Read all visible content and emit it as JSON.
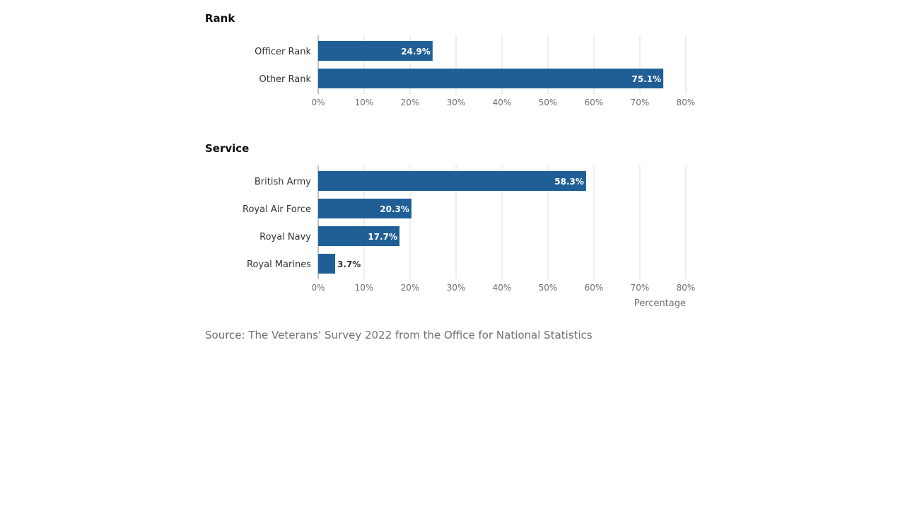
{
  "chart_data": [
    {
      "type": "bar",
      "orientation": "horizontal",
      "title": "Rank",
      "categories": [
        "Officer Rank",
        "Other Rank"
      ],
      "values": [
        24.9,
        75.1
      ],
      "value_labels": [
        "24.9%",
        "75.1%"
      ],
      "xlim": [
        0,
        80
      ],
      "xticks": [
        "0%",
        "10%",
        "20%",
        "30%",
        "40%",
        "50%",
        "60%",
        "70%",
        "80%"
      ],
      "xlabel": "",
      "grid": true,
      "color": "#1f5f96"
    },
    {
      "type": "bar",
      "orientation": "horizontal",
      "title": "Service",
      "categories": [
        "British Army",
        "Royal Air Force",
        "Royal Navy",
        "Royal Marines"
      ],
      "values": [
        58.3,
        20.3,
        17.7,
        3.7
      ],
      "value_labels": [
        "58.3%",
        "20.3%",
        "17.7%",
        "3.7%"
      ],
      "xlim": [
        0,
        80
      ],
      "xticks": [
        "0%",
        "10%",
        "20%",
        "30%",
        "40%",
        "50%",
        "60%",
        "70%",
        "80%"
      ],
      "xlabel": "Percentage",
      "grid": true,
      "color": "#1f5f96"
    }
  ],
  "source": "Source: The Veterans' Survey 2022 from the Office for National Statistics"
}
